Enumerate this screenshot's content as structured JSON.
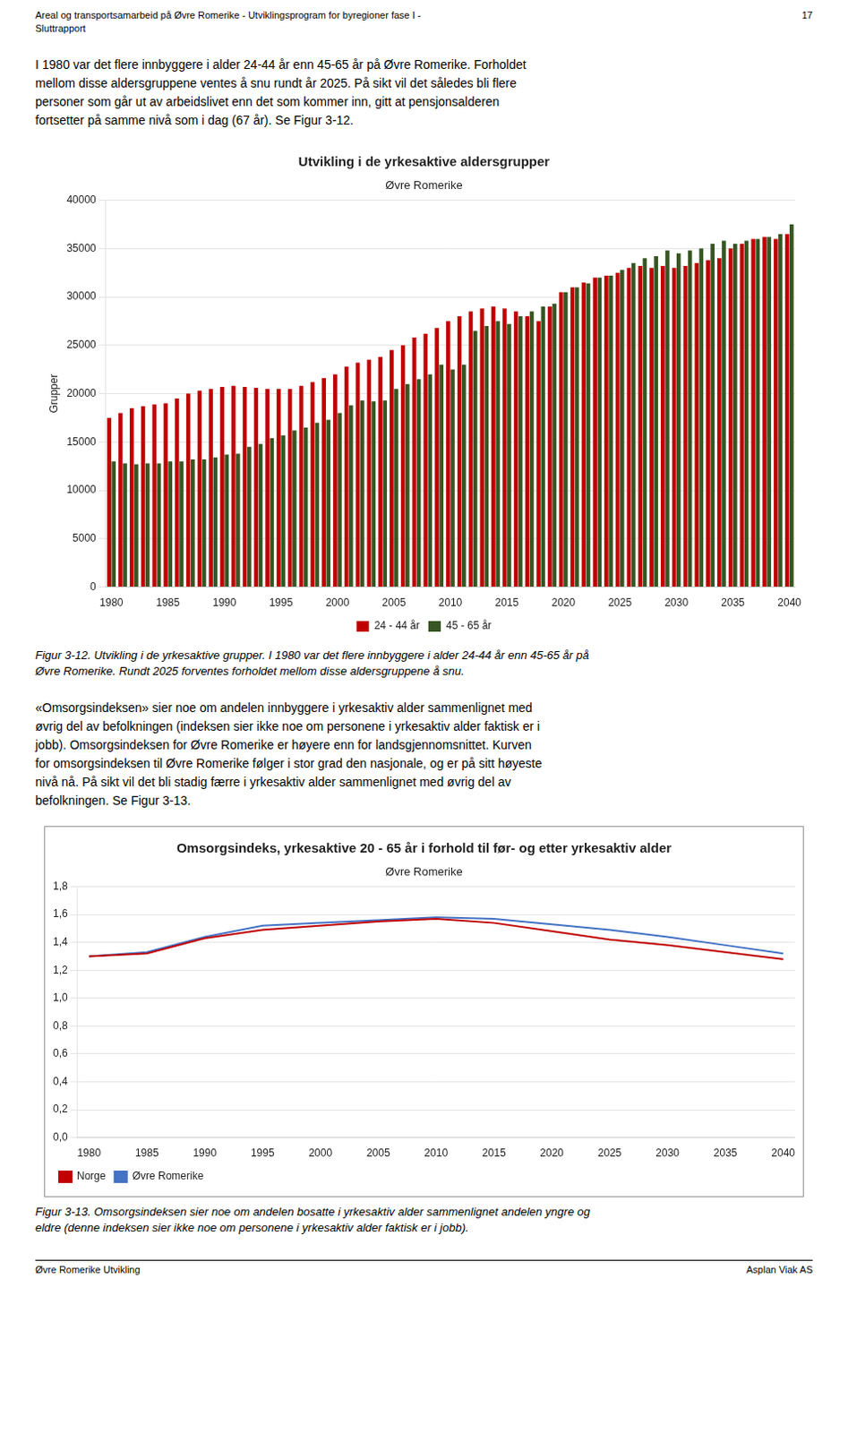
{
  "page_header_left": "Areal og transportsamarbeid på Øvre Romerike - Utviklingsprogram for byregioner fase I -\nSluttrapport",
  "page_number": "17",
  "body_text_1": [
    "I 1980 var det flere innbyggere i alder 24-44 år enn 45-65 år på Øvre Romerike. Forholdet",
    "mellom disse aldersgruppene ventes å snu rundt år 2025. På sikt vil det således bli flere",
    "personer som går ut av arbeidslivet enn det som kommer inn, gitt at pensjonsalderen",
    "fortsetter på samme nivå som i dag (67 år). Se Figur 3-12."
  ],
  "caption_1": [
    "Figur 3-12. Utvikling i de yrkesaktive grupper. I 1980 var det flere innbyggere i alder 24-44 år enn 45-65 år på",
    "Øvre Romerike. Rundt 2025 forventes forholdet mellom disse aldersgruppene å snu."
  ],
  "body_text_2": [
    "«Omsorgsindeksen» sier noe om andelen innbyggere i yrkesaktiv alder sammenlignet med",
    "øvrig del av befolkningen (indeksen sier ikke noe om personene i yrkesaktiv alder faktisk er i",
    "jobb).  Omsorgsindeksen for Øvre Romerike er høyere enn for landsgjennomsnittet.  Kurven",
    "for omsorgsindeksen til Øvre Romerike følger i stor grad den nasjonale, og er på sitt høyeste",
    "nivå nå. På sikt vil det bli stadig færre i yrkesaktiv alder sammenlignet med øvrig del av",
    "befolkningen. Se Figur 3-13."
  ],
  "caption_2": [
    "Figur 3-13. Omsorgsindeksen sier noe om andelen bosatte i yrkesaktiv alder sammenlignet andelen yngre og",
    "eldre (denne indeksen sier ikke noe om personene i yrkesaktiv alder faktisk er i jobb)."
  ],
  "footer_left": "Øvre Romerike Utvikling",
  "footer_right": "Asplan Viak AS",
  "chart_data": [
    {
      "type": "bar",
      "title": "Utvikling i de yrkesaktive aldersgrupper",
      "subtitle": "Øvre Romerike",
      "ylabel": "Grupper",
      "categories": [
        "1980",
        null,
        null,
        null,
        null,
        "1985",
        null,
        null,
        null,
        null,
        "1990",
        null,
        null,
        null,
        null,
        "1995",
        null,
        null,
        null,
        null,
        "2000",
        null,
        null,
        null,
        null,
        "2005",
        null,
        null,
        null,
        null,
        "2010",
        null,
        null,
        null,
        null,
        "2015",
        null,
        null,
        null,
        null,
        "2020",
        null,
        null,
        null,
        null,
        "2025",
        null,
        null,
        null,
        null,
        "2030",
        null,
        null,
        null,
        null,
        "2035",
        null,
        null,
        null,
        null,
        "2040"
      ],
      "series": [
        {
          "name": "24 - 44 år",
          "color": "#C00000",
          "values": [
            17500,
            18000,
            18500,
            18700,
            18900,
            19000,
            19500,
            20000,
            20300,
            20500,
            20700,
            20800,
            20700,
            20600,
            20500,
            20500,
            20500,
            20800,
            21200,
            21600,
            22000,
            22800,
            23200,
            23500,
            23800,
            24500,
            25000,
            25800,
            26200,
            26800,
            27500,
            28000,
            28500,
            28800,
            29000,
            28800,
            28500,
            28000,
            27500,
            29000,
            30500,
            31000,
            31500,
            32000,
            32200,
            32500,
            33000,
            33200,
            33000,
            33200,
            33000,
            33200,
            33500,
            33800,
            34000,
            35000,
            35500,
            36000,
            36200,
            36000,
            36500
          ]
        },
        {
          "name": "45 - 65 år",
          "color": "#375623",
          "values": [
            13000,
            12800,
            12700,
            12800,
            12800,
            13000,
            13000,
            13200,
            13200,
            13400,
            13700,
            13800,
            14500,
            14800,
            15400,
            15700,
            16200,
            16500,
            17000,
            17300,
            18000,
            18800,
            19300,
            19200,
            19300,
            20500,
            21000,
            21500,
            22000,
            23000,
            22500,
            23000,
            26500,
            27000,
            27500,
            27200,
            28000,
            28500,
            29000,
            29300,
            30500,
            31000,
            31400,
            32000,
            32200,
            32800,
            33500,
            34000,
            34200,
            34800,
            34500,
            34800,
            35000,
            35500,
            35800,
            35500,
            35800,
            36000,
            36200,
            36500,
            37500
          ]
        }
      ],
      "ylim": [
        0,
        40000
      ],
      "yticks": [
        0,
        5000,
        10000,
        15000,
        20000,
        25000,
        30000,
        35000,
        40000
      ],
      "grid": "y",
      "legend": "lower center"
    },
    {
      "type": "line",
      "title": "Omsorgsindeks, yrkesaktive 20 - 65 år i forhold til før- og etter yrkesaktiv alder",
      "subtitle": "Øvre Romerike",
      "x": [
        1980,
        1985,
        1990,
        1995,
        2000,
        2005,
        2010,
        2015,
        2020,
        2025,
        2030,
        2035,
        2040
      ],
      "series": [
        {
          "name": "Norge",
          "color": "#C00000",
          "values": [
            1.3,
            1.32,
            1.43,
            1.49,
            1.52,
            1.55,
            1.57,
            1.54,
            1.48,
            1.42,
            1.38,
            1.33,
            1.28
          ]
        },
        {
          "name": "Øvre Romerike",
          "color": "#4472C4",
          "values": [
            1.3,
            1.33,
            1.44,
            1.52,
            1.54,
            1.56,
            1.58,
            1.57,
            1.53,
            1.49,
            1.44,
            1.38,
            1.32
          ]
        }
      ],
      "xlim": [
        1979,
        2041
      ],
      "xticks": [
        1980,
        1985,
        1990,
        1995,
        2000,
        2005,
        2010,
        2015,
        2020,
        2025,
        2030,
        2035,
        2040
      ],
      "ylim": [
        0.0,
        1.8
      ],
      "yticks": [
        {
          "value": 0.0,
          "label": "0,0"
        },
        {
          "value": 0.2,
          "label": "0,2"
        },
        {
          "value": 0.4,
          "label": "0,4"
        },
        {
          "value": 0.6,
          "label": "0,6"
        },
        {
          "value": 0.8,
          "label": "0,8"
        },
        {
          "value": 1.0,
          "label": "1,0"
        },
        {
          "value": 1.2,
          "label": "1,2"
        },
        {
          "value": 1.4,
          "label": "1,4"
        },
        {
          "value": 1.6,
          "label": "1,6"
        },
        {
          "value": 1.8,
          "label": "1,8"
        }
      ],
      "grid": "y",
      "legend": "lower left"
    }
  ]
}
